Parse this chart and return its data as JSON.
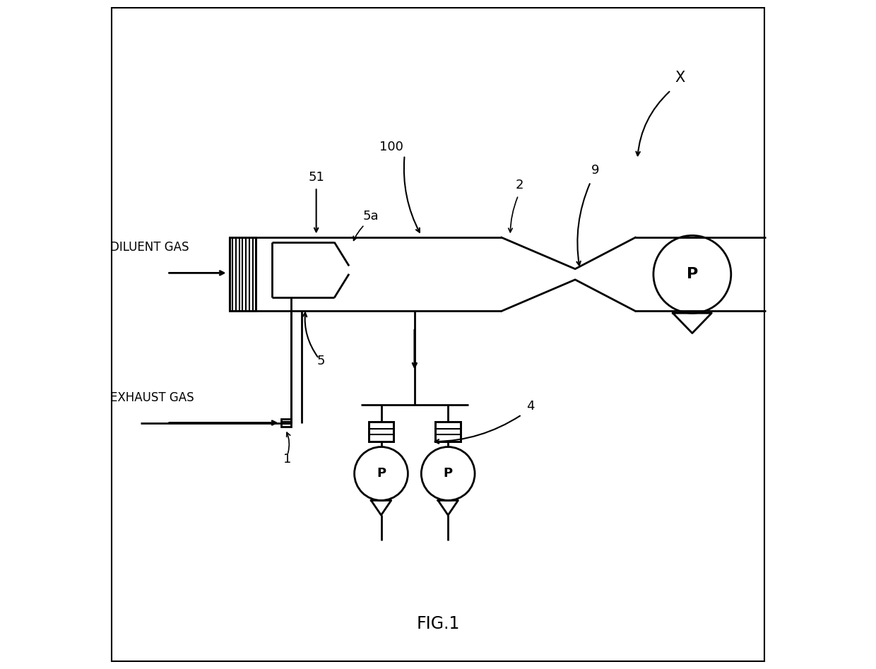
{
  "bg_color": "#ffffff",
  "line_color": "#000000",
  "line_width": 2.0,
  "fig_caption": "FIG.1",
  "labels": {
    "diluent_gas": "DILUENT GAS",
    "exhaust_gas": "EXHAUST GAS",
    "label_51": "51",
    "label_100": "100",
    "label_5a": "5a",
    "label_5": "5",
    "label_1": "1",
    "label_2": "2",
    "label_9": "9",
    "label_X": "X",
    "label_4": "4",
    "label_P": "P"
  },
  "font_size": 13
}
